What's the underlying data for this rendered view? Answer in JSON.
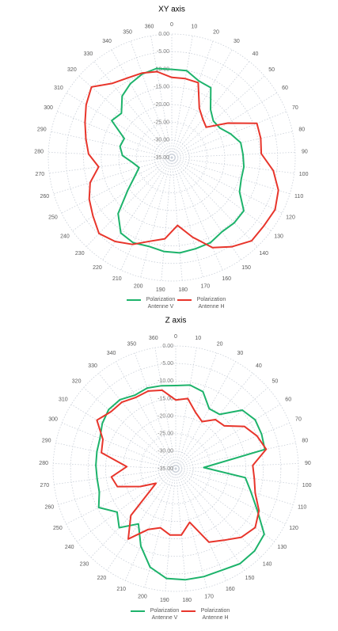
{
  "chart_data": [
    {
      "type": "radar",
      "title": "XY axis",
      "categories": [
        "0",
        "10",
        "20",
        "30",
        "40",
        "50",
        "60",
        "70",
        "80",
        "90",
        "100",
        "110",
        "120",
        "130",
        "140",
        "150",
        "160",
        "170",
        "180",
        "190",
        "200",
        "210",
        "220",
        "230",
        "240",
        "250",
        "260",
        "270",
        "280",
        "290",
        "300",
        "310",
        "320",
        "330",
        "340",
        "350",
        "360"
      ],
      "series": [
        {
          "name": "Polarization Antenne V",
          "color": "#1db36b",
          "values": [
            -10,
            -10,
            -12,
            -12.3,
            -17.5,
            -19.3,
            -19,
            -17,
            -15,
            -14.8,
            -14.4,
            -14.4,
            -13.5,
            -9.6,
            -9.4,
            -9.6,
            -8.5,
            -8.3,
            -7.9,
            -8.3,
            -9,
            -8.5,
            -9.2,
            -13,
            -19.5,
            -23.3,
            -25.3,
            -23.8,
            -21,
            -20,
            -20.5,
            -15,
            -16,
            -12.6,
            -11,
            -9.9,
            -9.4
          ]
        },
        {
          "name": "Polarization Antenne H",
          "color": "#e8352b",
          "values": [
            -12.3,
            -12.3,
            -12.5,
            -19,
            -21,
            -22,
            -16.4,
            -9,
            -9.2,
            -9.6,
            -6,
            -3.4,
            -2.2,
            -2.5,
            -2.3,
            -4.5,
            -7,
            -11.7,
            -15.7,
            -11.9,
            -10.5,
            -8,
            -6.3,
            -5.2,
            -7.2,
            -8.8,
            -10.8,
            -14.1,
            -11.4,
            -10.1,
            -8.5,
            -6.5,
            -4.7,
            -8,
            -9.2,
            -9.6,
            -10.3
          ]
        }
      ],
      "ylim": [
        -35,
        0
      ],
      "yticks": [
        {
          "value": -35,
          "label": "-35.00"
        },
        {
          "value": -30,
          "label": "-30.00"
        },
        {
          "value": -25,
          "label": "-25.00"
        },
        {
          "value": -20,
          "label": "-20.00"
        },
        {
          "value": -15,
          "label": "-15.00"
        },
        {
          "value": -10,
          "label": "-10.00"
        },
        {
          "value": -5,
          "label": "-5.00"
        },
        {
          "value": 0,
          "label": "0.00"
        }
      ],
      "grid": true
    },
    {
      "type": "radar",
      "title": "Z axis",
      "categories": [
        "0",
        "10",
        "20",
        "30",
        "40",
        "50",
        "60",
        "70",
        "80",
        "90",
        "100",
        "110",
        "120",
        "130",
        "140",
        "150",
        "160",
        "170",
        "180",
        "190",
        "200",
        "210",
        "220",
        "230",
        "240",
        "250",
        "260",
        "270",
        "280",
        "290",
        "300",
        "310",
        "320",
        "330",
        "340",
        "350",
        "360"
      ],
      "series": [
        {
          "name": "Polarization Antenne V",
          "color": "#1db36b",
          "values": [
            -11.3,
            -10.8,
            -11.7,
            -15.4,
            -15.1,
            -9.7,
            -8.4,
            -8.6,
            -9,
            -27,
            -15,
            -12.6,
            -9,
            -3.6,
            -2.5,
            -2.3,
            -3.2,
            -3.2,
            -3.2,
            -3.6,
            -6,
            -10.8,
            -16,
            -11.7,
            -14.2,
            -10.4,
            -12.2,
            -12.4,
            -12.2,
            -12,
            -11.7,
            -10.4,
            -9.5,
            -9.7,
            -11,
            -10.6,
            -11
          ]
        },
        {
          "name": "Polarization Antenne H",
          "color": "#e8352b",
          "values": [
            -15.4,
            -14.7,
            -18,
            -19.6,
            -17,
            -16.5,
            -12,
            -10,
            -8.6,
            -13,
            -12.4,
            -11.3,
            -8.4,
            -6.8,
            -7.9,
            -10.4,
            -12,
            -19.2,
            -16,
            -16,
            -17.6,
            -16,
            -10.8,
            -16.5,
            -28,
            -23.7,
            -17.6,
            -16.5,
            -21,
            -13.3,
            -12.6,
            -8.6,
            -10.4,
            -10.6,
            -11.7,
            -11.5,
            -12.3
          ]
        }
      ],
      "ylim": [
        -35,
        0
      ],
      "yticks": [
        {
          "value": -35,
          "label": "-35.00"
        },
        {
          "value": -30,
          "label": "-30.00"
        },
        {
          "value": -25,
          "label": "-25.00"
        },
        {
          "value": -20,
          "label": "-20.00"
        },
        {
          "value": -15,
          "label": "-15.00"
        },
        {
          "value": -10,
          "label": "-10.00"
        },
        {
          "value": -5,
          "label": "-5.00"
        },
        {
          "value": 0,
          "label": "0.00"
        }
      ],
      "grid": true
    }
  ]
}
